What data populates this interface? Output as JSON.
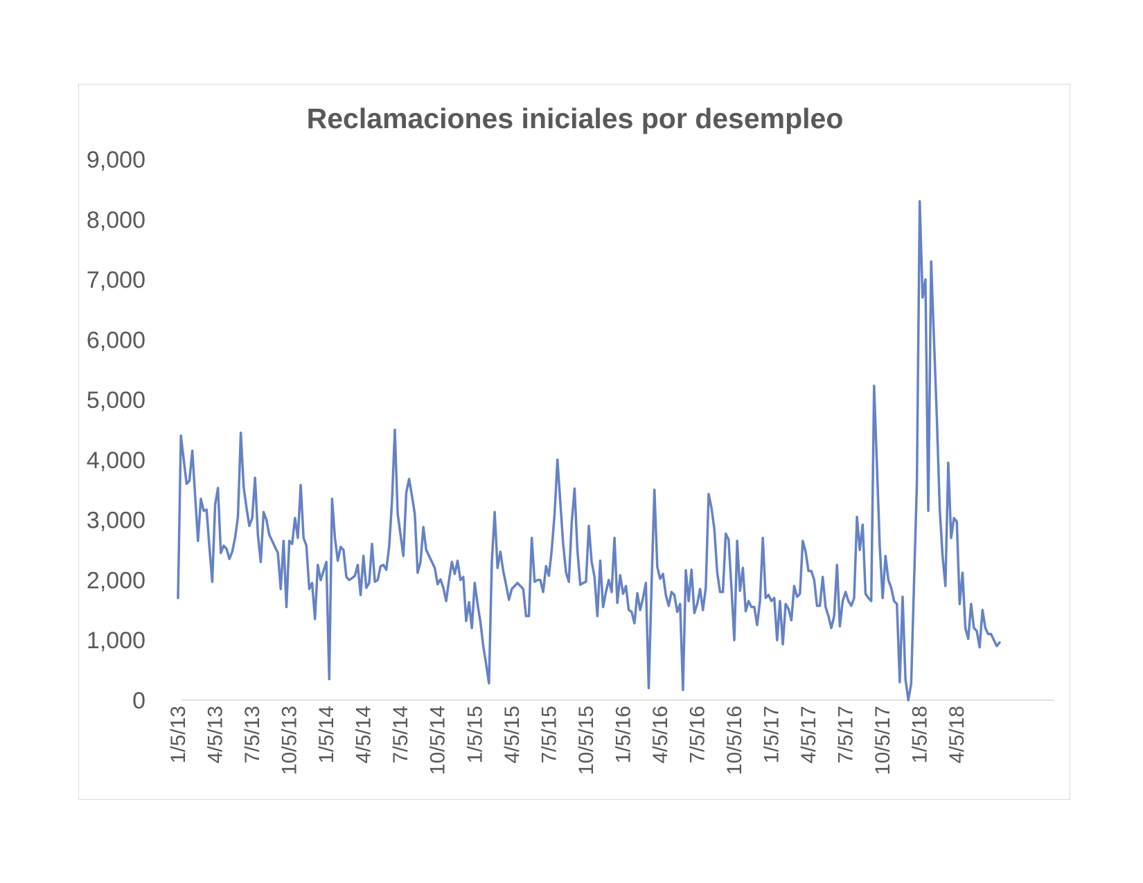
{
  "chart_data": {
    "type": "line",
    "title": "Reclamaciones iniciales por desempleo",
    "xlabel": "",
    "ylabel": "",
    "ylim": [
      0,
      9000
    ],
    "yticks": [
      "0",
      "1,000",
      "2,000",
      "3,000",
      "4,000",
      "5,000",
      "6,000",
      "7,000",
      "8,000",
      "9,000"
    ],
    "xticks": [
      "1/5/13",
      "4/5/13",
      "7/5/13",
      "10/5/13",
      "1/5/14",
      "4/5/14",
      "7/5/14",
      "10/5/14",
      "1/5/15",
      "4/5/15",
      "7/5/15",
      "10/5/15",
      "1/5/16",
      "4/5/16",
      "7/5/16",
      "10/5/16",
      "1/5/17",
      "4/5/17",
      "7/5/17",
      "10/5/17",
      "1/5/18",
      "4/5/18"
    ],
    "grid": false,
    "legend": "none",
    "colors": {
      "series": "#6582c5",
      "text": "#595959",
      "axis": "#d9d9d9",
      "frame": "#d9d9d9"
    },
    "series": [
      {
        "x_start": "1/5/13",
        "frequency": "weekly",
        "values": [
          1700,
          4400,
          4000,
          3600,
          3650,
          4150,
          3400,
          2650,
          3350,
          3150,
          3170,
          2550,
          1970,
          3250,
          3530,
          2450,
          2570,
          2520,
          2350,
          2470,
          2700,
          3050,
          4450,
          3550,
          3200,
          2900,
          3030,
          3700,
          2750,
          2300,
          3130,
          3000,
          2750,
          2650,
          2550,
          2450,
          1850,
          2650,
          1550,
          2650,
          2600,
          3030,
          2700,
          3580,
          2700,
          2570,
          1850,
          1950,
          1350,
          2250,
          2000,
          2150,
          2300,
          350,
          3350,
          2700,
          2320,
          2550,
          2500,
          2050,
          2000,
          2030,
          2070,
          2250,
          1750,
          2400,
          1870,
          1950,
          2600,
          1970,
          2000,
          2230,
          2250,
          2170,
          2550,
          3300,
          4500,
          3100,
          2750,
          2400,
          3450,
          3680,
          3400,
          3100,
          2120,
          2300,
          2880,
          2500,
          2400,
          2300,
          2200,
          1930,
          2010,
          1870,
          1650,
          2000,
          2300,
          2100,
          2320,
          2000,
          2050,
          1320,
          1630,
          1200,
          1950,
          1600,
          1300,
          900,
          600,
          280,
          2300,
          3130,
          2200,
          2470,
          2150,
          1920,
          1670,
          1850,
          1900,
          1950,
          1900,
          1850,
          1400,
          1400,
          2700,
          1970,
          2000,
          2000,
          1800,
          2230,
          2070,
          2500,
          3100,
          4000,
          3300,
          2600,
          2130,
          1970,
          2950,
          3520,
          2500,
          1920,
          1950,
          1970,
          2900,
          2300,
          2050,
          1400,
          2320,
          1550,
          1800,
          2000,
          1800,
          2700,
          1620,
          2080,
          1770,
          1900,
          1500,
          1470,
          1280,
          1780,
          1500,
          1700,
          1950,
          200,
          1930,
          3500,
          2220,
          2020,
          2100,
          1750,
          1570,
          1800,
          1750,
          1470,
          1600,
          170,
          2160,
          1650,
          2170,
          1450,
          1600,
          1850,
          1500,
          1870,
          3430,
          3200,
          2850,
          2130,
          1800,
          1800,
          2770,
          2670,
          1870,
          1000,
          2650,
          1820,
          2200,
          1480,
          1650,
          1550,
          1550,
          1250,
          1650,
          2700,
          1700,
          1750,
          1650,
          1700,
          1000,
          1650,
          930,
          1600,
          1520,
          1330,
          1900,
          1720,
          1770,
          2650,
          2470,
          2150,
          2150,
          2000,
          1570,
          1570,
          2050,
          1550,
          1400,
          1200,
          1400,
          2250,
          1230,
          1650,
          1800,
          1650,
          1570,
          1700,
          3050,
          2500,
          2920,
          1770,
          1700,
          1650,
          5230,
          3900,
          2550,
          1700,
          2400,
          2000,
          1870,
          1650,
          1600,
          300,
          1720,
          350,
          0,
          270,
          1950,
          3600,
          8300,
          6700,
          7000,
          3150,
          7300,
          6000,
          4700,
          3200,
          2400,
          1900,
          3950,
          2700,
          3030,
          2970,
          1600,
          2120,
          1200,
          1020,
          1600,
          1200,
          1150,
          880,
          1500,
          1200,
          1100,
          1100,
          1000,
          900,
          960
        ]
      }
    ]
  }
}
